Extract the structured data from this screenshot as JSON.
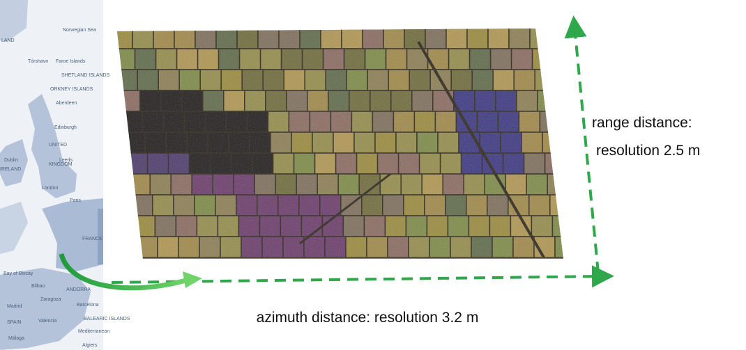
{
  "map": {
    "labels": [
      "Norwegian Sea",
      "LAND",
      "Tórshavn",
      "Faroe Islands",
      "SHETLAND ISLANDS",
      "ORKNEY ISLANDS",
      "Aberdeen",
      "Edinburgh",
      "UNITED",
      "KINGDOM",
      "IRELAND",
      "Dublin",
      "Leeds",
      "London",
      "Paris",
      "FRANCE",
      "Bay of Biscay",
      "Bilbao",
      "ANDORRA",
      "Madrid",
      "Zaragoza",
      "SPAIN",
      "Valencia",
      "Barcelona",
      "BALEARIC ISLANDS",
      "Mediterranean",
      "Málaga",
      "Algiers"
    ]
  },
  "annotations": {
    "range": [
      "range distance:",
      "resolution 2.5 m"
    ],
    "azimuth": "azimuth distance: resolution 3.2 m"
  }
}
